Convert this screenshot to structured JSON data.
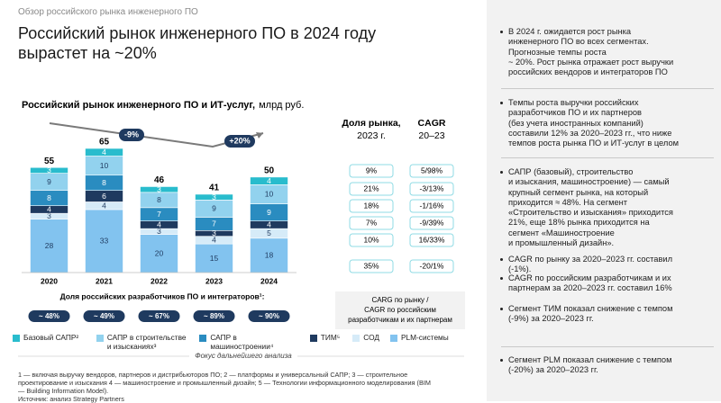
{
  "breadcrumb": "Обзор российского рынка инженерного ПО",
  "title_lines": [
    "Российский рынок инженерного ПО в 2024 году",
    "вырастет на ~20%"
  ],
  "chart_data": {
    "type": "stacked_bar",
    "title": "Российский рынок инженерного ПО и ИТ-услуг,",
    "unit": "млрд руб.",
    "categories": [
      "2020",
      "2021",
      "2022",
      "2023",
      "2024"
    ],
    "series": [
      {
        "name": "PLM-системы",
        "color": "#82c3ef",
        "values": [
          28,
          33,
          20,
          15,
          18
        ]
      },
      {
        "name": "СОД",
        "color": "#d6ebf8",
        "values": [
          3,
          4,
          3,
          4,
          5
        ]
      },
      {
        "name": "ТИМ⁵",
        "color": "#1f3a5f",
        "values": [
          4,
          6,
          4,
          3,
          4
        ]
      },
      {
        "name": "САПР в машиностроении⁴",
        "color": "#2a8cc0",
        "values": [
          8,
          8,
          7,
          7,
          9
        ]
      },
      {
        "name": "САПР в строительстве и изысканиях³",
        "color": "#92d2ee",
        "values": [
          9,
          10,
          8,
          9,
          10
        ]
      },
      {
        "name": "Базовый САПР²",
        "color": "#29bccd",
        "values": [
          3,
          4,
          3,
          3,
          4
        ]
      }
    ],
    "totals": [
      55,
      65,
      46,
      41,
      50
    ],
    "ylim": [
      0,
      65
    ],
    "annotations": [
      "-9%",
      "+20%"
    ],
    "share_title": "Доля российских разработчиков ПО и интеграторов¹:",
    "shares": [
      "~ 48%",
      "~ 49%",
      "~ 67%",
      "~ 89%",
      "~ 90%"
    ],
    "focus_label": "Фокус дальнейшего анализа"
  },
  "market_table": {
    "headers": [
      [
        "Доля рынка,",
        "2023 г."
      ],
      [
        "CAGR",
        "20–23"
      ]
    ],
    "rows": [
      [
        "9%",
        "5/98%"
      ],
      [
        "21%",
        "-3/13%"
      ],
      [
        "18%",
        "-1/16%"
      ],
      [
        "7%",
        "-9/39%"
      ],
      [
        "10%",
        "16/33%"
      ],
      [
        "35%",
        "-20/1%"
      ]
    ],
    "note": [
      "CARG по рынку /",
      "CAGR по российским",
      "разработчикам и их партнерам"
    ]
  },
  "footnotes": [
    "1 — включая выручку вендоров, партнеров и дистрибьюторов ПО; 2 — платформы и универсальный САПР; 3 — строительное",
    "проектирование и изыскания 4 — машиностроение и промышленный дизайн; 5 — Технологии информационного моделирования (BIM",
    "— Building Information Model).",
    "Источник: анализ Strategy Partners"
  ],
  "bullets": [
    [
      "В 2024 г. ожидается рост рынка",
      "инженерного ПО во всех сегментах.",
      "Прогнозные темпы роста",
      "~ 20%. Рост рынка отражает рост выручки",
      "российских вендоров и интеграторов ПО"
    ],
    [
      "Темпы роста выручки российских",
      "разработчиков ПО и их партнеров",
      "(без учета иностранных компаний)",
      "составили 12% за 2020–2023 гг., что ниже",
      "темпов роста рынка ПО и ИТ-услуг в целом"
    ],
    [
      "САПР (базовый), строительство",
      "и изыскания,  машиностроение) — самый",
      "крупный сегмент рынка, на который",
      "приходится ≈ 48%. На сегмент",
      "«Строительство и изыскания» приходится",
      "21%, еще 18% рынка приходится на",
      "сегмент «Машиностроение",
      "и промышленный дизайн»."
    ],
    [
      "CAGR по рынку за 2020–2023 гг. составил",
      "(-1%)."
    ],
    [
      "CAGR по российским разработчикам и их",
      "партнерам за 2020–2023 гг. составил 16%"
    ],
    [
      "Сегмент ТИМ показал снижение с темпом",
      "(-9%) за 2020–2023 гг."
    ],
    [
      "Сегмент PLM показал снижение с темпом",
      "(-20%) за 2020–2023 гг."
    ]
  ]
}
